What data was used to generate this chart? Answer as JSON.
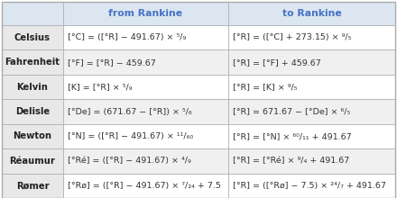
{
  "title_col1": "from Rankine",
  "title_col2": "to Rankine",
  "title_color": "#4472c4",
  "header_bg": "#dce6f1",
  "row_bg_odd": "#ffffff",
  "row_bg_even": "#f0f0f0",
  "border_color": "#aaaaaa",
  "scale_col_bg": "#e8e8e8",
  "rows": [
    {
      "scale": "Celsius",
      "from": "[°C] = ([°R] − 491.67) × ⁵/₉",
      "to": "[°R] = ([°C] + 273.15) × ⁹/₅"
    },
    {
      "scale": "Fahrenheit",
      "from": "[°F] = [°R] − 459.67",
      "to": "[°R] = [°F] + 459.67"
    },
    {
      "scale": "Kelvin",
      "from": "[K] = [°R] × ⁵/₉",
      "to": "[°R] = [K] × ⁹/₅"
    },
    {
      "scale": "Delisle",
      "from": "[°De] = (671.67 − [°R]) × ⁵/₆",
      "to": "[°R] = 671.67 − [°De] × ⁶/₅"
    },
    {
      "scale": "Newton",
      "from": "[°N] = ([°R] − 491.67) × ¹¹/₆₀",
      "to": "[°R] = [°N] × ⁶⁰/₁₁ + 491.67"
    },
    {
      "scale": "Réaumur",
      "from": "[°Ré] = ([°R] − 491.67) × ⁴/₉",
      "to": "[°R] = [°Ré] × ⁹/₄ + 491.67"
    },
    {
      "scale": "Rømer",
      "from": "[°Rø] = ([°R] − 491.67) × ⁷/₂₄ + 7.5",
      "to": "[°R] = ([°Rø] − 7.5) × ²⁴/₇ + 491.67"
    }
  ],
  "fig_width": 4.4,
  "fig_height": 2.2,
  "dpi": 100,
  "header_fontsize": 7.8,
  "scale_fontsize": 7.2,
  "formula_fontsize": 6.8
}
